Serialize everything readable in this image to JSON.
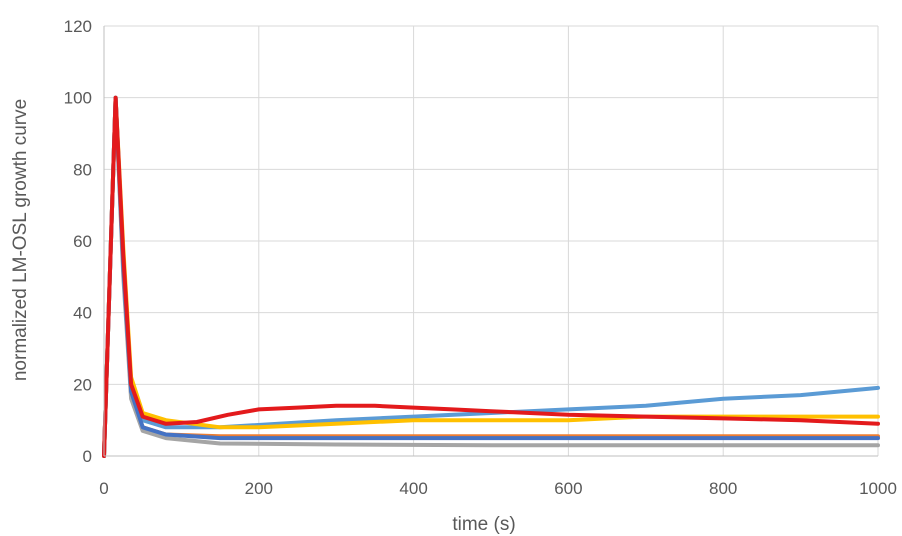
{
  "chart_data": {
    "type": "line",
    "xlabel": "time (s)",
    "ylabel": "normalized LM-OSL growth curve",
    "xlim": [
      0,
      1000
    ],
    "ylim": [
      0,
      120
    ],
    "xticks": [
      0,
      200,
      400,
      600,
      800,
      1000
    ],
    "yticks": [
      0,
      20,
      40,
      60,
      80,
      100,
      120
    ],
    "grid": true,
    "legend": "none",
    "series": [
      {
        "color": "#5b9bd5",
        "points": [
          [
            0,
            0
          ],
          [
            15,
            100
          ],
          [
            25,
            55
          ],
          [
            35,
            20
          ],
          [
            50,
            10
          ],
          [
            80,
            8
          ],
          [
            150,
            8
          ],
          [
            300,
            10
          ],
          [
            400,
            11
          ],
          [
            500,
            12
          ],
          [
            600,
            13
          ],
          [
            700,
            14
          ],
          [
            800,
            16
          ],
          [
            900,
            17
          ],
          [
            1000,
            19
          ]
        ]
      },
      {
        "color": "#ffc000",
        "points": [
          [
            0,
            0
          ],
          [
            15,
            100
          ],
          [
            25,
            58
          ],
          [
            35,
            22
          ],
          [
            50,
            12
          ],
          [
            80,
            10
          ],
          [
            150,
            8
          ],
          [
            200,
            8
          ],
          [
            300,
            9
          ],
          [
            400,
            10
          ],
          [
            500,
            10
          ],
          [
            600,
            10
          ],
          [
            700,
            11
          ],
          [
            800,
            11
          ],
          [
            900,
            11
          ],
          [
            1000,
            11
          ]
        ]
      },
      {
        "color": "#ed7d31",
        "points": [
          [
            0,
            0
          ],
          [
            15,
            100
          ],
          [
            25,
            52
          ],
          [
            35,
            17
          ],
          [
            50,
            8
          ],
          [
            80,
            6
          ],
          [
            150,
            5.5
          ],
          [
            300,
            5.5
          ],
          [
            500,
            5.5
          ],
          [
            700,
            5.5
          ],
          [
            1000,
            5.5
          ]
        ]
      },
      {
        "color": "#a5a5a5",
        "points": [
          [
            0,
            0
          ],
          [
            15,
            100
          ],
          [
            25,
            50
          ],
          [
            35,
            16
          ],
          [
            50,
            7
          ],
          [
            80,
            5
          ],
          [
            150,
            3.5
          ],
          [
            300,
            3.2
          ],
          [
            500,
            3
          ],
          [
            700,
            3
          ],
          [
            1000,
            3
          ]
        ]
      },
      {
        "color": "#4472c4",
        "points": [
          [
            0,
            0
          ],
          [
            15,
            100
          ],
          [
            25,
            53
          ],
          [
            35,
            18
          ],
          [
            50,
            8
          ],
          [
            80,
            6
          ],
          [
            150,
            5
          ],
          [
            300,
            5
          ],
          [
            500,
            5
          ],
          [
            700,
            5
          ],
          [
            1000,
            5
          ]
        ]
      },
      {
        "color": "#e31a1c",
        "points": [
          [
            0,
            0
          ],
          [
            15,
            100
          ],
          [
            25,
            56
          ],
          [
            35,
            20
          ],
          [
            50,
            11
          ],
          [
            80,
            9
          ],
          [
            120,
            9.5
          ],
          [
            160,
            11.5
          ],
          [
            200,
            13
          ],
          [
            250,
            13.5
          ],
          [
            300,
            14
          ],
          [
            350,
            14
          ],
          [
            400,
            13.5
          ],
          [
            450,
            13
          ],
          [
            500,
            12.5
          ],
          [
            550,
            12
          ],
          [
            600,
            11.5
          ],
          [
            700,
            11
          ],
          [
            800,
            10.5
          ],
          [
            900,
            10
          ],
          [
            1000,
            9
          ]
        ]
      }
    ]
  }
}
